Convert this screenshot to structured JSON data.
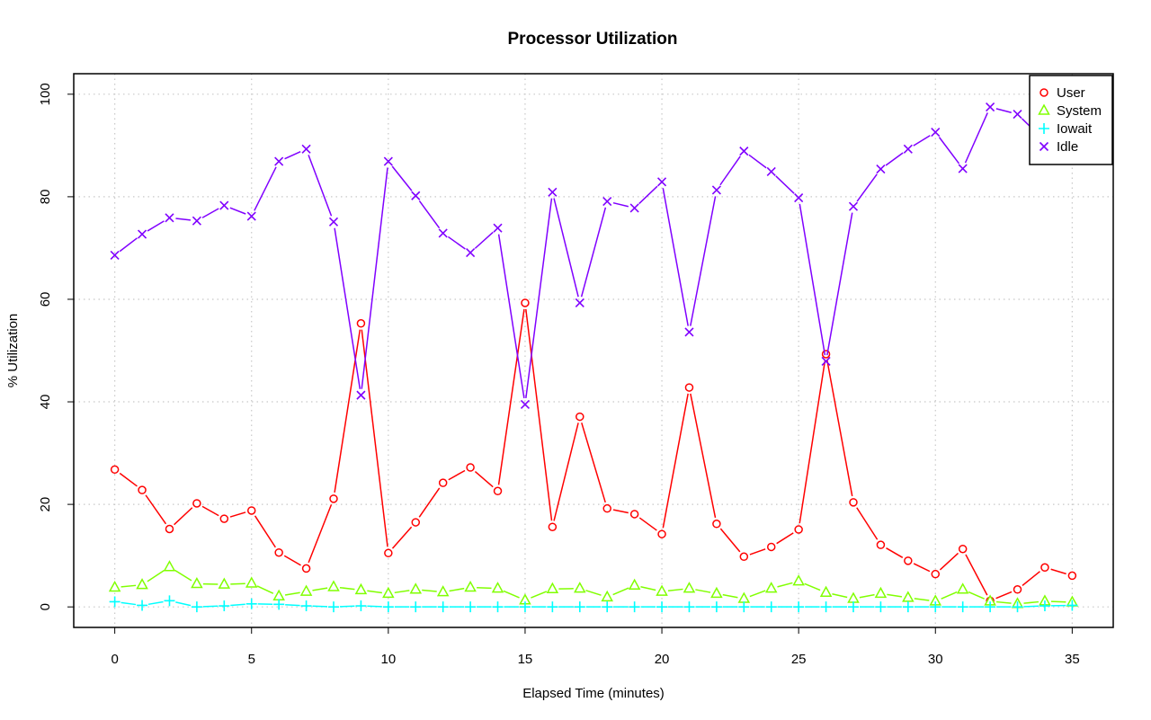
{
  "chart_data": {
    "type": "line",
    "title": "Processor Utilization",
    "xlabel": "Elapsed Time (minutes)",
    "ylabel": "% Utilization",
    "xlim": [
      -1.5,
      36.5
    ],
    "ylim": [
      -4,
      104
    ],
    "x_ticks": [
      0,
      5,
      10,
      15,
      20,
      25,
      30,
      35
    ],
    "y_ticks": [
      0,
      20,
      40,
      60,
      80,
      100
    ],
    "grid": true,
    "legend_position": "top-right",
    "x": [
      0,
      1,
      2,
      3,
      4,
      5,
      6,
      7,
      8,
      9,
      10,
      11,
      12,
      13,
      14,
      15,
      16,
      17,
      18,
      19,
      20,
      21,
      22,
      23,
      24,
      25,
      26,
      27,
      28,
      29,
      30,
      31,
      32,
      33,
      34,
      35
    ],
    "series": [
      {
        "name": "User",
        "color": "#ff0000",
        "marker": "circle",
        "values": [
          26.8,
          22.8,
          15.2,
          20.2,
          17.2,
          18.8,
          10.6,
          7.5,
          21.1,
          55.3,
          10.5,
          16.5,
          24.2,
          27.2,
          22.6,
          59.3,
          15.6,
          37.1,
          19.2,
          18.1,
          14.2,
          42.8,
          16.2,
          9.8,
          11.7,
          15.1,
          49.3,
          20.4,
          12.1,
          9.0,
          6.4,
          11.3,
          1.2,
          3.4,
          7.7,
          6.1
        ]
      },
      {
        "name": "System",
        "color": "#80ff00",
        "marker": "triangle",
        "values": [
          3.8,
          4.3,
          7.8,
          4.5,
          4.4,
          4.6,
          2.1,
          3.0,
          3.9,
          3.3,
          2.6,
          3.4,
          2.9,
          3.8,
          3.6,
          1.3,
          3.5,
          3.6,
          1.9,
          4.2,
          3.0,
          3.6,
          2.6,
          1.6,
          3.6,
          5.0,
          2.8,
          1.6,
          2.6,
          1.8,
          1.1,
          3.4,
          1.1,
          0.6,
          1.1,
          0.9
        ]
      },
      {
        "name": "Iowait",
        "color": "#00ffff",
        "marker": "plus",
        "values": [
          1.0,
          0.3,
          1.2,
          0.0,
          0.2,
          0.6,
          0.5,
          0.2,
          0.0,
          0.2,
          0.0,
          0.0,
          0.0,
          0.0,
          0.0,
          0.0,
          0.0,
          0.0,
          0.0,
          0.0,
          0.0,
          0.0,
          0.0,
          0.0,
          0.0,
          0.0,
          0.0,
          0.0,
          0.0,
          0.0,
          0.0,
          0.0,
          0.0,
          0.0,
          0.2,
          0.3
        ]
      },
      {
        "name": "Idle",
        "color": "#8000ff",
        "marker": "cross",
        "values": [
          68.6,
          72.7,
          75.9,
          75.3,
          78.3,
          76.2,
          86.9,
          89.3,
          75.1,
          41.3,
          86.9,
          80.2,
          72.9,
          69.1,
          73.9,
          39.5,
          80.9,
          59.3,
          79.1,
          77.8,
          82.9,
          53.6,
          81.3,
          88.9,
          84.9,
          79.8,
          47.9,
          78.1,
          85.4,
          89.3,
          92.6,
          85.5,
          97.5,
          96.1,
          90.9,
          92.7
        ]
      }
    ]
  }
}
